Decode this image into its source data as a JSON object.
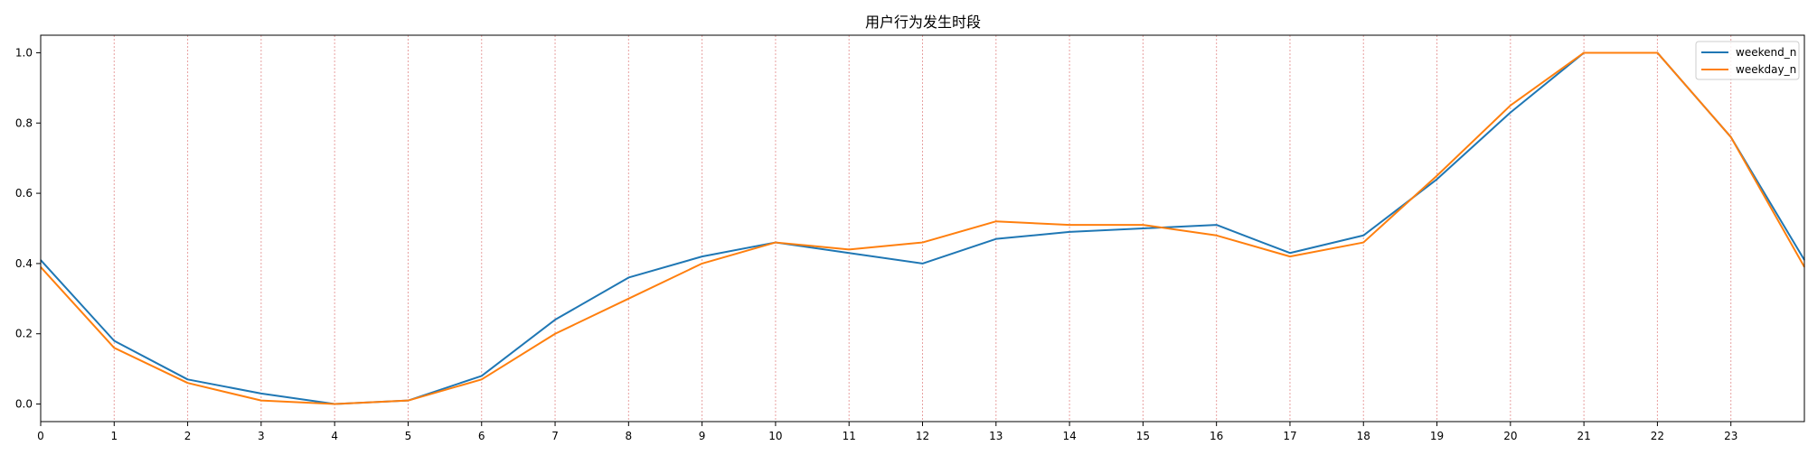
{
  "chart_data": {
    "type": "line",
    "title": "用户行为发生时段",
    "xlabel": "",
    "ylabel": "",
    "x": [
      0,
      1,
      2,
      3,
      4,
      5,
      6,
      7,
      8,
      9,
      10,
      11,
      12,
      13,
      14,
      15,
      16,
      17,
      18,
      19,
      20,
      21,
      22,
      23,
      24
    ],
    "xlim": [
      0,
      24
    ],
    "ylim": [
      -0.05,
      1.05
    ],
    "x_ticks": [
      0,
      1,
      2,
      3,
      4,
      5,
      6,
      7,
      8,
      9,
      10,
      11,
      12,
      13,
      14,
      15,
      16,
      17,
      18,
      19,
      20,
      21,
      22,
      23
    ],
    "y_ticks": [
      0.0,
      0.2,
      0.4,
      0.6,
      0.8,
      1.0
    ],
    "y_tick_labels": [
      "0.0",
      "0.2",
      "0.4",
      "0.6",
      "0.8",
      "1.0"
    ],
    "vertical_grid": true,
    "vertical_grid_color": "#e8a0a0",
    "legend_position": "top-right",
    "series": [
      {
        "name": "weekend_n",
        "color": "#1f77b4",
        "values": [
          0.41,
          0.18,
          0.07,
          0.03,
          0.0,
          0.01,
          0.08,
          0.24,
          0.36,
          0.42,
          0.46,
          0.43,
          0.4,
          0.47,
          0.49,
          0.5,
          0.51,
          0.43,
          0.48,
          0.64,
          0.83,
          1.0,
          1.0,
          0.76,
          0.41
        ]
      },
      {
        "name": "weekday_n",
        "color": "#ff7f0e",
        "values": [
          0.39,
          0.16,
          0.06,
          0.01,
          0.0,
          0.01,
          0.07,
          0.2,
          0.3,
          0.4,
          0.46,
          0.44,
          0.46,
          0.52,
          0.51,
          0.51,
          0.48,
          0.42,
          0.46,
          0.65,
          0.85,
          1.0,
          1.0,
          0.76,
          0.39
        ]
      }
    ]
  }
}
